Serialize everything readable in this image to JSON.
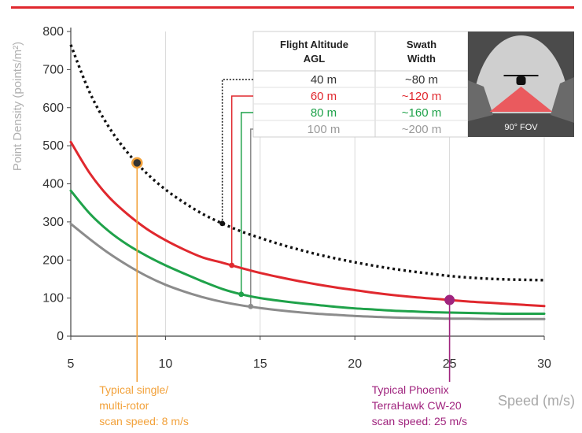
{
  "colors": {
    "series_40": "#111111",
    "series_60": "#e0282e",
    "series_80": "#1fa24a",
    "series_100": "#8c8c8c",
    "single_rotor": "#f2a13a",
    "phoenix": "#a0247e",
    "top_rule": "#e0282e",
    "grid": "#d9d9d9"
  },
  "chart_data": {
    "type": "line",
    "ylabel": "Point Density (points/m²)",
    "xlabel": "Speed (m/s)",
    "xlim": [
      5,
      30
    ],
    "ylim": [
      0,
      800
    ],
    "xticks": [
      5,
      10,
      15,
      20,
      25,
      30
    ],
    "yticks": [
      0,
      100,
      200,
      300,
      400,
      500,
      600,
      700,
      800
    ],
    "grid": "vertical",
    "x": [
      5,
      6,
      7,
      8,
      9,
      10,
      11,
      12,
      13,
      14,
      15,
      16,
      17,
      18,
      19,
      20,
      21,
      22,
      23,
      24,
      25,
      26,
      27,
      28,
      29,
      30
    ],
    "series": [
      {
        "name": "40 m",
        "style": "dotted",
        "values": [
          765,
          640,
          550,
          482,
          428,
          385,
          350,
          320,
          296,
          275,
          258,
          242,
          228,
          215,
          204,
          194,
          185,
          177,
          170,
          164,
          158,
          154,
          151,
          149,
          148,
          147
        ]
      },
      {
        "name": "60 m",
        "style": "solid",
        "values": [
          510,
          428,
          366,
          320,
          282,
          252,
          227,
          206,
          193,
          179,
          166,
          155,
          145,
          136,
          128,
          121,
          114,
          108,
          103,
          99,
          95,
          91,
          88,
          85,
          82,
          79
        ]
      },
      {
        "name": "80 m",
        "style": "solid",
        "values": [
          382,
          322,
          276,
          240,
          211,
          186,
          164,
          143,
          124,
          110,
          100,
          93,
          87,
          82,
          77,
          73,
          70,
          67,
          65,
          63,
          62,
          61,
          60,
          59,
          59,
          59
        ]
      },
      {
        "name": "100 m",
        "style": "solid",
        "values": [
          295,
          255,
          218,
          186,
          158,
          135,
          117,
          102,
          90,
          81,
          74,
          68,
          63,
          59,
          56,
          53,
          51,
          49,
          48,
          47,
          46,
          46,
          45,
          45,
          45,
          45
        ]
      }
    ],
    "markers": [
      {
        "series": "40 m",
        "x": 13,
        "y": 296
      },
      {
        "series": "60 m",
        "x": 13.5,
        "y": 186
      },
      {
        "series": "80 m",
        "x": 14,
        "y": 110
      },
      {
        "series": "100 m",
        "x": 14.5,
        "y": 78
      }
    ],
    "annotations": [
      {
        "id": "single",
        "x": 8.5,
        "y": 455,
        "lines": [
          "Typical single/",
          "multi-rotor",
          "scan speed: 8 m/s"
        ]
      },
      {
        "id": "phoenix",
        "x": 25,
        "y": 95,
        "lines": [
          "Typical Phoenix",
          "TerraHawk CW-20",
          "scan speed: 25 m/s"
        ]
      }
    ]
  },
  "table": {
    "headers": [
      {
        "line1": "Flight Altitude",
        "line2": "AGL"
      },
      {
        "line1": "Swath",
        "line2": "Width"
      }
    ],
    "rows": [
      {
        "altitude": "40 m",
        "swath": "~80 m",
        "color": "#333333"
      },
      {
        "altitude": "60 m",
        "swath": "~120 m",
        "color": "#e0282e"
      },
      {
        "altitude": "80 m",
        "swath": "~160 m",
        "color": "#1fa24a"
      },
      {
        "altitude": "100 m",
        "swath": "~200 m",
        "color": "#9a9a9a"
      }
    ],
    "fov_label": "90° FOV"
  }
}
